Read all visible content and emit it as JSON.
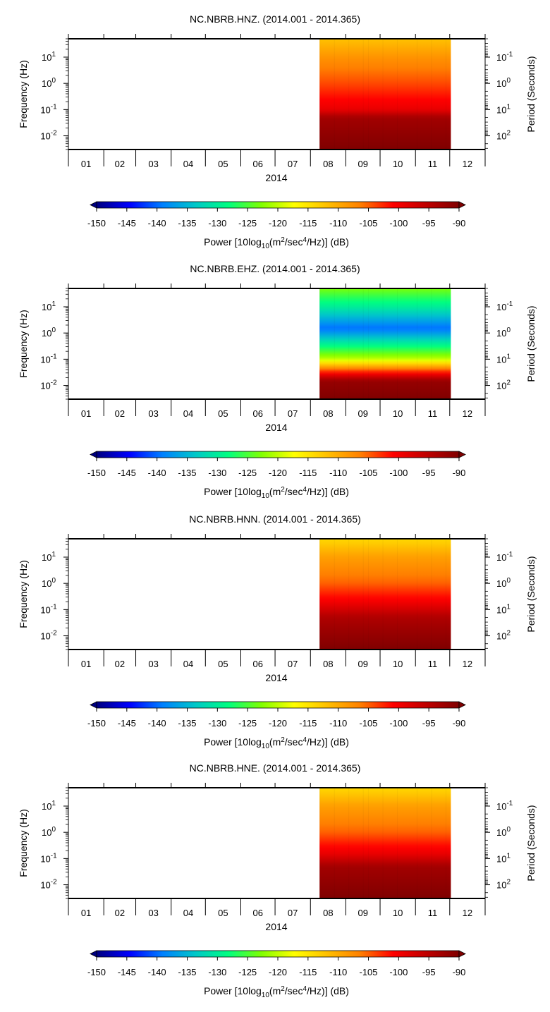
{
  "colors": {
    "colorbar_stops": [
      "#000080",
      "#0000ff",
      "#0080ff",
      "#00c8c8",
      "#00ff80",
      "#80ff00",
      "#ffff00",
      "#ffc000",
      "#ff8000",
      "#ff0000",
      "#c00000",
      "#800000"
    ],
    "frame": "#000000",
    "background": "#ffffff"
  },
  "chart_data": [
    {
      "type": "heatmap",
      "title": "NC.NBRB.HNZ. (2014.001 - 2014.365)",
      "xlabel": "2014",
      "ylabel": "Frequency (Hz)",
      "ylabel_right": "Period (Seconds)",
      "x_ticks": [
        "01",
        "02",
        "03",
        "04",
        "05",
        "06",
        "07",
        "08",
        "09",
        "10",
        "11",
        "12"
      ],
      "y_ticks": [
        "10^1",
        "10^0",
        "10^-1",
        "10^-2"
      ],
      "y_ticks_right": [
        "10^-1",
        "10^0",
        "10^1",
        "10^2"
      ],
      "y_scale": "log",
      "data_start_day": 220,
      "data_end_day": 335,
      "profile": [
        {
          "f": 50,
          "dB": -112
        },
        {
          "f": 10,
          "dB": -108
        },
        {
          "f": 1,
          "dB": -104
        },
        {
          "f": 0.1,
          "dB": -99
        },
        {
          "f": 0.05,
          "dB": -93
        },
        {
          "f": 0.003,
          "dB": -90
        }
      ],
      "colorbar": {
        "ticks": [
          "-150",
          "-145",
          "-140",
          "-135",
          "-130",
          "-125",
          "-120",
          "-115",
          "-110",
          "-105",
          "-100",
          "-95",
          "-90"
        ],
        "label": "Power [10log10(m2/sec4/Hz)] (dB)"
      }
    },
    {
      "type": "heatmap",
      "title": "NC.NBRB.EHZ. (2014.001 - 2014.365)",
      "xlabel": "2014",
      "ylabel": "Frequency (Hz)",
      "ylabel_right": "Period (Seconds)",
      "x_ticks": [
        "01",
        "02",
        "03",
        "04",
        "05",
        "06",
        "07",
        "08",
        "09",
        "10",
        "11",
        "12"
      ],
      "y_ticks": [
        "10^1",
        "10^0",
        "10^-1",
        "10^-2"
      ],
      "y_ticks_right": [
        "10^-1",
        "10^0",
        "10^1",
        "10^2"
      ],
      "y_scale": "log",
      "data_start_day": 220,
      "data_end_day": 335,
      "profile": [
        {
          "f": 50,
          "dB": -123
        },
        {
          "f": 10,
          "dB": -130
        },
        {
          "f": 1.5,
          "dB": -140
        },
        {
          "f": 0.4,
          "dB": -130
        },
        {
          "f": 0.1,
          "dB": -120
        },
        {
          "f": 0.04,
          "dB": -105
        },
        {
          "f": 0.015,
          "dB": -92
        },
        {
          "f": 0.003,
          "dB": -90
        }
      ],
      "colorbar": {
        "ticks": [
          "-150",
          "-145",
          "-140",
          "-135",
          "-130",
          "-125",
          "-120",
          "-115",
          "-110",
          "-105",
          "-100",
          "-95",
          "-90"
        ],
        "label": "Power [10log10(m2/sec4/Hz)] (dB)"
      }
    },
    {
      "type": "heatmap",
      "title": "NC.NBRB.HNN. (2014.001 - 2014.365)",
      "xlabel": "2014",
      "ylabel": "Frequency (Hz)",
      "ylabel_right": "Period (Seconds)",
      "x_ticks": [
        "01",
        "02",
        "03",
        "04",
        "05",
        "06",
        "07",
        "08",
        "09",
        "10",
        "11",
        "12"
      ],
      "y_ticks": [
        "10^1",
        "10^0",
        "10^-1",
        "10^-2"
      ],
      "y_ticks_right": [
        "10^-1",
        "10^0",
        "10^1",
        "10^2"
      ],
      "y_scale": "log",
      "data_start_day": 220,
      "data_end_day": 335,
      "profile": [
        {
          "f": 50,
          "dB": -114
        },
        {
          "f": 10,
          "dB": -109
        },
        {
          "f": 1,
          "dB": -105
        },
        {
          "f": 0.2,
          "dB": -100
        },
        {
          "f": 0.05,
          "dB": -94
        },
        {
          "f": 0.003,
          "dB": -90
        }
      ],
      "colorbar": {
        "ticks": [
          "-150",
          "-145",
          "-140",
          "-135",
          "-130",
          "-125",
          "-120",
          "-115",
          "-110",
          "-105",
          "-100",
          "-95",
          "-90"
        ],
        "label": "Power [10log10(m2/sec4/Hz)] (dB)"
      }
    },
    {
      "type": "heatmap",
      "title": "NC.NBRB.HNE. (2014.001 - 2014.365)",
      "xlabel": "2014",
      "ylabel": "Frequency (Hz)",
      "ylabel_right": "Period (Seconds)",
      "x_ticks": [
        "01",
        "02",
        "03",
        "04",
        "05",
        "06",
        "07",
        "08",
        "09",
        "10",
        "11",
        "12"
      ],
      "y_ticks": [
        "10^1",
        "10^0",
        "10^-1",
        "10^-2"
      ],
      "y_ticks_right": [
        "10^-1",
        "10^0",
        "10^1",
        "10^2"
      ],
      "y_scale": "log",
      "data_start_day": 220,
      "data_end_day": 335,
      "profile": [
        {
          "f": 50,
          "dB": -114
        },
        {
          "f": 10,
          "dB": -109
        },
        {
          "f": 1,
          "dB": -105
        },
        {
          "f": 0.15,
          "dB": -99
        },
        {
          "f": 0.05,
          "dB": -93
        },
        {
          "f": 0.003,
          "dB": -90
        }
      ],
      "colorbar": {
        "ticks": [
          "-150",
          "-145",
          "-140",
          "-135",
          "-130",
          "-125",
          "-120",
          "-115",
          "-110",
          "-105",
          "-100",
          "-95",
          "-90"
        ],
        "label": "Power [10log10(m2/sec4/Hz)] (dB)"
      }
    }
  ]
}
